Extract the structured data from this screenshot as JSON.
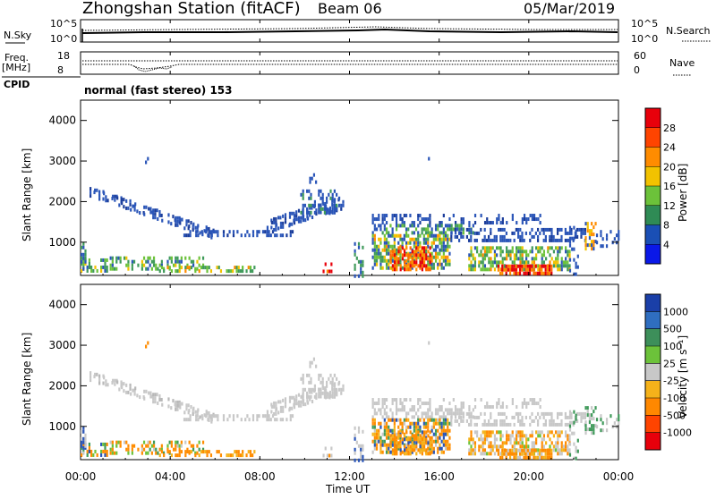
{
  "header": {
    "station": "Zhongshan Station (fitACF)",
    "beam": "Beam 06",
    "date": "05/Mar/2019"
  },
  "summary_panels": {
    "nsky_label": "N.Sky",
    "nsearch_label": "N.Search",
    "noise_ticks": [
      "10^5",
      "10^0"
    ],
    "freq_label": "Freq.",
    "freq_unit": "[MHz]",
    "freq_ticks": [
      "18",
      "8"
    ],
    "nave_label": "Nave",
    "nave_ticks": [
      "60",
      "0"
    ],
    "cpid_label": "CPID",
    "cpid_text": "normal (fast stereo) 153"
  },
  "chart_data": [
    {
      "type": "heatmap",
      "name_hint": "power",
      "ylabel": "Slant Range [km]",
      "y_ticks": [
        "4000",
        "3000",
        "2000",
        "1000"
      ],
      "y_tick_values": [
        4000,
        3000,
        2000,
        1000
      ],
      "ylim": [
        180,
        4500
      ],
      "xlim_hours": [
        0,
        24
      ],
      "colorbar": {
        "label": "Power [dB]",
        "ticks": [
          "28",
          "24",
          "20",
          "16",
          "12",
          "8",
          "4"
        ],
        "colors": [
          "#e8000b",
          "#ff4400",
          "#ff8c00",
          "#f2c200",
          "#6cc23a",
          "#2f8b55",
          "#1a4fb5",
          "#0a18e8"
        ]
      }
    },
    {
      "type": "heatmap",
      "name_hint": "velocity",
      "ylabel": "Slant Range [km]",
      "y_ticks": [
        "4000",
        "3000",
        "2000",
        "1000"
      ],
      "y_tick_values": [
        4000,
        3000,
        2000,
        1000
      ],
      "ylim": [
        180,
        4500
      ],
      "xlim_hours": [
        0,
        24
      ],
      "colorbar": {
        "label": "Velocity [m s⁻¹]",
        "ticks": [
          "1000",
          "500",
          "100",
          "25",
          "-25",
          "-100",
          "-500",
          "-1000"
        ],
        "colors": [
          "#1a3fa8",
          "#2f6ec0",
          "#3d8f5a",
          "#6cc23a",
          "#c8c8c8",
          "#f5b21a",
          "#ff8800",
          "#ff4400",
          "#e8000b"
        ]
      }
    }
  ],
  "x_axis": {
    "ticks": [
      "00:00",
      "04:00",
      "08:00",
      "12:00",
      "16:00",
      "20:00",
      "00:00"
    ],
    "tick_hours": [
      0,
      4,
      8,
      12,
      16,
      20,
      24
    ],
    "label": "Time UT"
  }
}
